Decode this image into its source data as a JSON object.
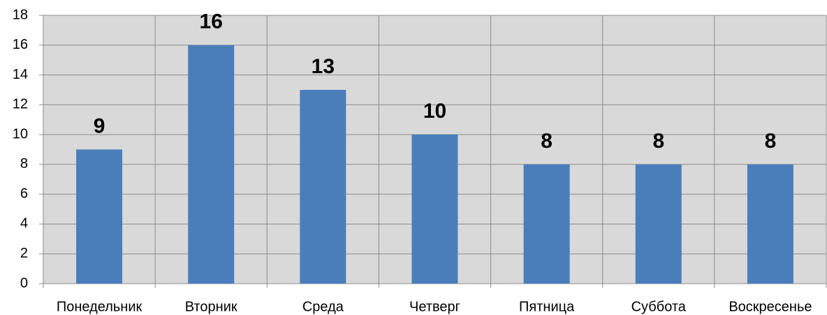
{
  "chart_data": {
    "type": "bar",
    "categories": [
      "Понедельник",
      "Вторник",
      "Среда",
      "Четверг",
      "Пятница",
      "Суббота",
      "Воскресенье"
    ],
    "values": [
      9,
      16,
      13,
      10,
      8,
      8,
      8
    ],
    "color": "#4a7ebb",
    "ylim": [
      0,
      18
    ],
    "yticks": [
      0,
      2,
      4,
      6,
      8,
      10,
      12,
      14,
      16,
      18
    ],
    "grid": true
  }
}
